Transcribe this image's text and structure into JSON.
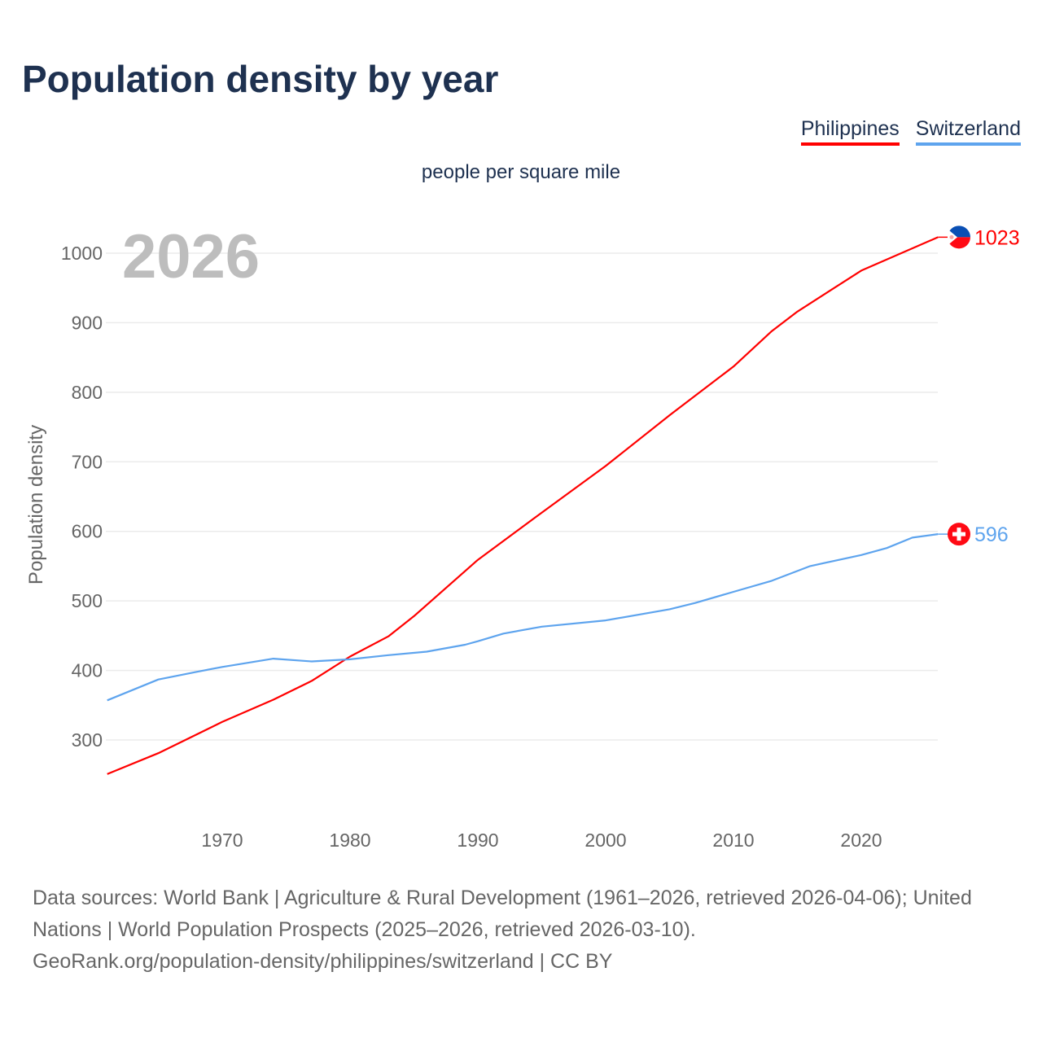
{
  "title": "Population density by year",
  "subtitle": "people per square mile",
  "footer": {
    "line1": "Data sources: World Bank | Agriculture & Rural Development (1961–2026, retrieved 2026-04-06); United Nations | World Population Prospects (2025–2026, retrieved 2026-03-10).",
    "line2": "GeoRank.org/population-density/philippines/switzerland | CC BY"
  },
  "chart_data": {
    "type": "line",
    "title": "Population density by year",
    "ylabel": "Population density",
    "xlabel": "",
    "year_label": "2026",
    "xlim": [
      1961,
      2026
    ],
    "ylim": [
      200,
      1050
    ],
    "xticks": [
      1970,
      1980,
      1990,
      2000,
      2010,
      2020
    ],
    "yticks": [
      300,
      400,
      500,
      600,
      700,
      800,
      900,
      1000
    ],
    "grid": true,
    "legend": "top-right",
    "series": [
      {
        "name": "Philippines",
        "color": "#ff0000",
        "end_label": "1023",
        "x": [
          1961,
          1965,
          1970,
          1974,
          1977,
          1980,
          1983,
          1985,
          1990,
          1995,
          2000,
          2005,
          2010,
          2013,
          2015,
          2020,
          2026
        ],
        "y": [
          251,
          281,
          326,
          358,
          385,
          420,
          449,
          478,
          559,
          627,
          694,
          767,
          837,
          888,
          916,
          975,
          1023
        ]
      },
      {
        "name": "Switzerland",
        "color": "#5ea4ee",
        "end_label": "596",
        "x": [
          1961,
          1965,
          1968,
          1970,
          1974,
          1977,
          1980,
          1983,
          1986,
          1989,
          1990,
          1992,
          1995,
          2000,
          2005,
          2007,
          2010,
          2013,
          2016,
          2020,
          2022,
          2024,
          2026
        ],
        "y": [
          357,
          387,
          398,
          405,
          417,
          413,
          416,
          422,
          427,
          437,
          442,
          453,
          463,
          472,
          488,
          497,
          513,
          529,
          550,
          566,
          576,
          591,
          596
        ]
      }
    ]
  }
}
